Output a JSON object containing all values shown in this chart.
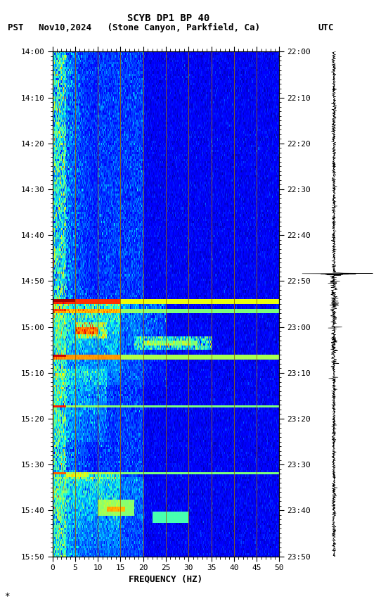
{
  "title_line1": "SCYB DP1 BP 40",
  "pst_label": "PST",
  "date_label": "Nov10,2024   (Stone Canyon, Parkfield, Ca)",
  "utc_label": "UTC",
  "xlabel": "FREQUENCY (HZ)",
  "freq_min": 0,
  "freq_max": 50,
  "pst_ticks": [
    "14:00",
    "14:10",
    "14:20",
    "14:30",
    "14:40",
    "14:50",
    "15:00",
    "15:10",
    "15:20",
    "15:30",
    "15:40",
    "15:50"
  ],
  "utc_ticks": [
    "22:00",
    "22:10",
    "22:20",
    "22:30",
    "22:40",
    "22:50",
    "23:00",
    "23:10",
    "23:20",
    "23:30",
    "23:40",
    "23:50"
  ],
  "vertical_lines_freq": [
    5,
    10,
    15,
    20,
    25,
    30,
    35,
    40,
    45
  ],
  "vertical_line_color": "#996600",
  "bg_color": "#ffffff",
  "fig_width": 5.52,
  "fig_height": 8.64,
  "dpi": 100,
  "note": "*"
}
